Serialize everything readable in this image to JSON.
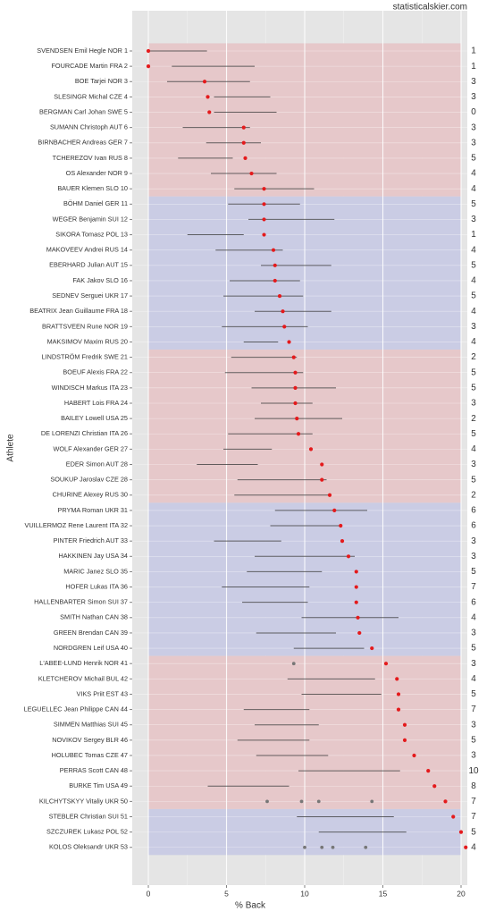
{
  "chart_data": {
    "type": "dotrange",
    "watermark": "statisticalskier.com",
    "x_label": "% Back",
    "y_label": "Athlete",
    "xlim": [
      -1.03,
      20.4
    ],
    "xticks": [
      0,
      5,
      10,
      15,
      20
    ],
    "grid": true,
    "point_color": "#e41a1c",
    "range_color": "#333333",
    "other_color": "#777777",
    "band_colors": [
      "#e6c6c8",
      "#c8cae4"
    ],
    "categories": [
      "SVENDSEN Emil Hegle NOR 1",
      "FOURCADE Martin FRA 2",
      "BOE Tarjei NOR 3",
      "SLESINGR Michal CZE 4",
      "BERGMAN Carl Johan SWE 5",
      "SUMANN Christoph AUT 6",
      "BIRNBACHER Andreas GER 7",
      "TCHEREZOV Ivan RUS 8",
      "OS Alexander NOR 9",
      "BAUER Klemen SLO 10",
      "BÖHM Daniel GER 11",
      "WEGER Benjamin SUI 12",
      "SIKORA Tomasz POL 13",
      "MAKOVEEV Andrei RUS 14",
      "EBERHARD Julian AUT 15",
      "FAK Jakov SLO 16",
      "SEDNEV Serguei UKR 17",
      "BEATRIX Jean Guillaume FRA 18",
      "BRATTSVEEN Rune NOR 19",
      "MAKSIMOV Maxim RUS 20",
      "LINDSTRÖM Fredrik SWE 21",
      "BOEUF Alexis FRA 22",
      "WINDISCH Markus ITA 23",
      "HABERT Lois FRA 24",
      "BAILEY Lowell USA 25",
      "DE LORENZI Christian ITA 26",
      "WOLF Alexander GER 27",
      "EDER Simon AUT 28",
      "SOUKUP Jaroslav CZE 28",
      "CHURINE Alexey RUS 30",
      "PRYMA Roman UKR 31",
      "VUILLERMOZ Rene Laurent ITA 32",
      "PINTER Friedrich AUT 33",
      "HAKKINEN Jay USA 34",
      "MARIC Janez SLO 35",
      "HOFER Lukas ITA 36",
      "HALLENBARTER Simon SUI 37",
      "SMITH Nathan CAN 38",
      "GREEN Brendan CAN 39",
      "NORDGREN Leif USA 40",
      "L'ABEE-LUND Henrik NOR 41",
      "KLETCHEROV Michail BUL 42",
      "VIKS Priit EST 43",
      "LEGUELLEC Jean Philippe CAN 44",
      "SIMMEN Matthias SUI 45",
      "NOVIKOV Sergey BLR 46",
      "HOLUBEC Tomas CZE 47",
      "PERRAS Scott CAN 48",
      "BURKE Tim USA 49",
      "KILCHYTSKYY Vitaliy UKR 50",
      "STEBLER Christian SUI 51",
      "SZCZUREK Lukasz POL 52",
      "KOLOS Oleksandr UKR 53"
    ],
    "values": [
      0,
      0,
      3.6,
      3.8,
      3.9,
      6.1,
      6.1,
      6.2,
      6.6,
      7.4,
      7.4,
      7.4,
      7.4,
      8.0,
      8.1,
      8.1,
      8.4,
      8.6,
      8.7,
      9.0,
      9.3,
      9.4,
      9.4,
      9.4,
      9.5,
      9.6,
      10.4,
      11.1,
      11.1,
      11.6,
      11.9,
      12.3,
      12.4,
      12.8,
      13.3,
      13.3,
      13.3,
      13.4,
      13.5,
      14.3,
      15.2,
      15.9,
      16.0,
      16.0,
      16.4,
      16.4,
      17.0,
      17.9,
      18.3,
      19.0,
      19.5,
      20.0,
      20.3
    ],
    "range_low": [
      0,
      1.5,
      1.2,
      4.2,
      4.2,
      2.2,
      3.7,
      1.9,
      4.0,
      5.5,
      5.1,
      6.4,
      2.5,
      4.3,
      7.2,
      5.2,
      4.8,
      6.8,
      4.7,
      6.1,
      5.3,
      4.9,
      6.6,
      7.2,
      6.8,
      5.1,
      4.8,
      3.1,
      5.7,
      5.5,
      8.1,
      7.8,
      4.2,
      6.8,
      6.3,
      4.7,
      6.0,
      9.8,
      6.9,
      9.3,
      null,
      8.9,
      9.8,
      6.1,
      6.8,
      5.7,
      6.9,
      9.6,
      3.8,
      null,
      9.5,
      10.9,
      null
    ],
    "range_high": [
      3.75,
      6.8,
      6.5,
      7.8,
      8.2,
      6.5,
      7.2,
      5.4,
      8.2,
      10.6,
      9.7,
      11.9,
      6.1,
      8.6,
      11.7,
      9.7,
      9.9,
      11.7,
      10.2,
      8.3,
      9.5,
      9.9,
      12.0,
      10.5,
      12.4,
      10.5,
      7.9,
      7.0,
      11.4,
      11.6,
      14.0,
      12.2,
      8.5,
      13.2,
      11.1,
      10.3,
      10.2,
      16.0,
      12.0,
      13.8,
      null,
      14.5,
      14.9,
      10.3,
      10.9,
      10.3,
      11.5,
      16.1,
      9.0,
      null,
      15.7,
      16.5,
      null
    ],
    "others": [
      null,
      null,
      null,
      null,
      null,
      null,
      null,
      null,
      null,
      null,
      null,
      null,
      null,
      null,
      null,
      null,
      null,
      null,
      null,
      null,
      null,
      null,
      null,
      null,
      null,
      null,
      null,
      null,
      null,
      null,
      null,
      null,
      null,
      null,
      null,
      null,
      null,
      null,
      null,
      null,
      [
        9.3
      ],
      null,
      null,
      null,
      null,
      null,
      null,
      null,
      null,
      [
        7.6,
        9.8,
        10.9,
        14.3
      ],
      null,
      null,
      [
        10.0,
        11.1,
        11.8,
        13.9
      ]
    ],
    "counts": [
      1,
      1,
      3,
      3,
      0,
      3,
      3,
      5,
      4,
      4,
      5,
      3,
      1,
      4,
      5,
      4,
      5,
      4,
      3,
      4,
      2,
      5,
      5,
      3,
      2,
      5,
      4,
      3,
      5,
      2,
      6,
      6,
      3,
      3,
      5,
      7,
      6,
      4,
      3,
      5,
      3,
      4,
      5,
      7,
      3,
      5,
      3,
      10,
      8,
      7,
      7,
      5,
      4
    ]
  }
}
